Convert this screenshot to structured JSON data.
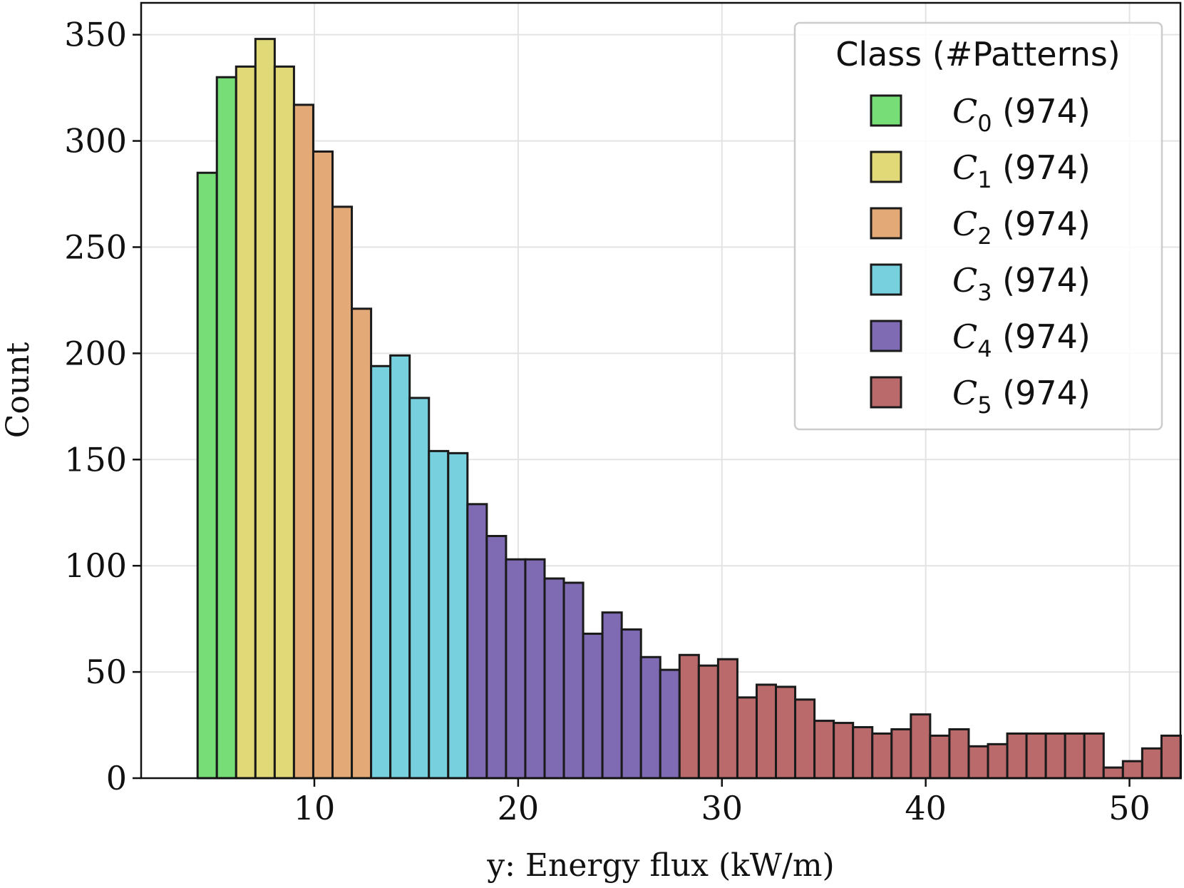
{
  "chart_data": {
    "type": "bar",
    "subtype": "stacked-class-histogram",
    "xlabel": "y: Energy flux (kW/m)",
    "ylabel": "Count",
    "xlim": [
      1.5,
      52.5
    ],
    "ylim": [
      0,
      365
    ],
    "x_ticks": [
      10,
      20,
      30,
      40,
      50
    ],
    "y_ticks": [
      0,
      50,
      100,
      150,
      200,
      250,
      300,
      350
    ],
    "grid": true,
    "legend": {
      "title": "Class (#Patterns)",
      "placement": "top-right",
      "entries": [
        {
          "symbol": "C",
          "sub": "0",
          "count": "(974)",
          "color": "#77dd77"
        },
        {
          "symbol": "C",
          "sub": "1",
          "count": "(974)",
          "color": "#e1d977"
        },
        {
          "symbol": "C",
          "sub": "2",
          "count": "(974)",
          "color": "#e3a977"
        },
        {
          "symbol": "C",
          "sub": "3",
          "count": "(974)",
          "color": "#77d0de"
        },
        {
          "symbol": "C",
          "sub": "4",
          "count": "(974)",
          "color": "#7f6ab4"
        },
        {
          "symbol": "C",
          "sub": "5",
          "count": "(974)",
          "color": "#bb6a6c"
        }
      ]
    },
    "bins": {
      "start": 4.27,
      "width": 0.946,
      "counts": [
        285,
        330,
        335,
        348,
        335,
        317,
        295,
        269,
        221,
        194,
        199,
        179,
        154,
        153,
        129,
        114,
        103,
        103,
        94,
        92,
        68,
        78,
        70,
        57,
        51,
        58,
        53,
        56,
        38,
        44,
        43,
        37,
        27,
        26,
        24,
        21,
        23,
        30,
        20,
        23,
        15,
        16,
        21,
        21,
        21,
        21,
        21,
        5,
        8,
        14,
        20
      ],
      "class_index": [
        0,
        0,
        1,
        1,
        1,
        2,
        2,
        2,
        2,
        3,
        3,
        3,
        3,
        3,
        4,
        4,
        4,
        4,
        4,
        4,
        4,
        4,
        4,
        4,
        4,
        5,
        5,
        5,
        5,
        5,
        5,
        5,
        5,
        5,
        5,
        5,
        5,
        5,
        5,
        5,
        5,
        5,
        5,
        5,
        5,
        5,
        5,
        5,
        5,
        5,
        5
      ]
    }
  }
}
